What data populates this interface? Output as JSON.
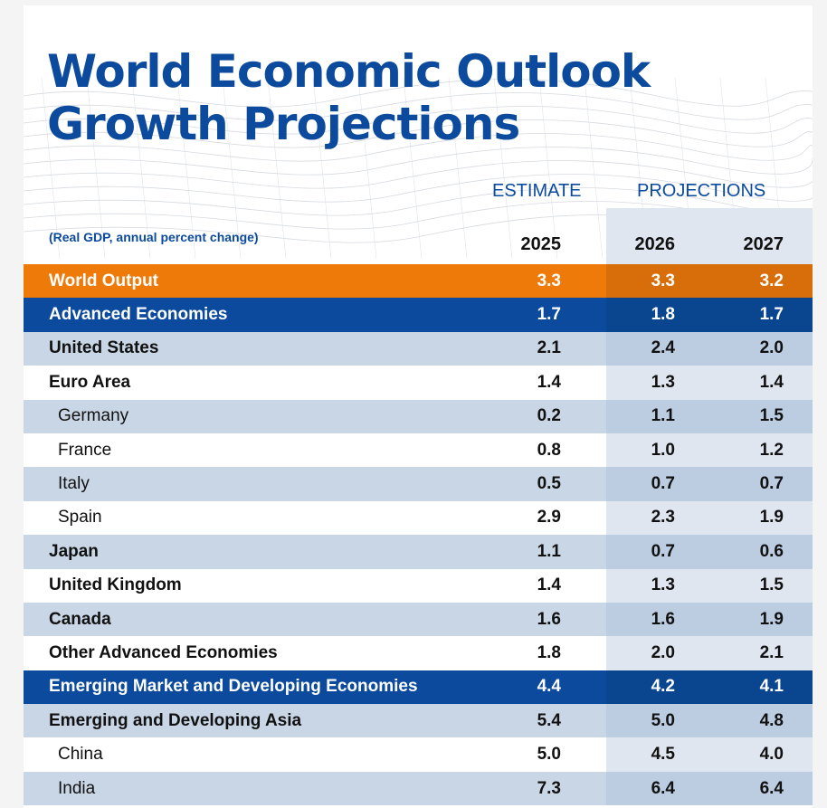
{
  "title_line1": "World Economic Outlook",
  "title_line2": "Growth Projections",
  "estimate_label": "ESTIMATE",
  "projections_label": "PROJECTIONS",
  "subtitle": "(Real GDP, annual percent change)",
  "years": [
    "2025",
    "2026",
    "2027"
  ],
  "rows": [
    {
      "label": "World Output",
      "values": [
        "3.3",
        "3.3",
        "3.2"
      ],
      "style": "orange",
      "sub": false
    },
    {
      "label": "Advanced Economies",
      "values": [
        "1.7",
        "1.8",
        "1.7"
      ],
      "style": "blue",
      "sub": false
    },
    {
      "label": "United States",
      "values": [
        "2.1",
        "2.4",
        "2.0"
      ],
      "style": "shaded",
      "sub": false
    },
    {
      "label": "Euro Area",
      "values": [
        "1.4",
        "1.3",
        "1.4"
      ],
      "style": "plain",
      "sub": false
    },
    {
      "label": "Germany",
      "values": [
        "0.2",
        "1.1",
        "1.5"
      ],
      "style": "shaded",
      "sub": true
    },
    {
      "label": "France",
      "values": [
        "0.8",
        "1.0",
        "1.2"
      ],
      "style": "plain",
      "sub": true
    },
    {
      "label": "Italy",
      "values": [
        "0.5",
        "0.7",
        "0.7"
      ],
      "style": "shaded",
      "sub": true
    },
    {
      "label": "Spain",
      "values": [
        "2.9",
        "2.3",
        "1.9"
      ],
      "style": "plain",
      "sub": true
    },
    {
      "label": "Japan",
      "values": [
        "1.1",
        "0.7",
        "0.6"
      ],
      "style": "shaded",
      "sub": false
    },
    {
      "label": "United Kingdom",
      "values": [
        "1.4",
        "1.3",
        "1.5"
      ],
      "style": "plain",
      "sub": false
    },
    {
      "label": "Canada",
      "values": [
        "1.6",
        "1.6",
        "1.9"
      ],
      "style": "shaded",
      "sub": false
    },
    {
      "label": "Other Advanced Economies",
      "values": [
        "1.8",
        "2.0",
        "2.1"
      ],
      "style": "plain",
      "sub": false
    },
    {
      "label": "Emerging Market and Developing Economies",
      "values": [
        "4.4",
        "4.2",
        "4.1"
      ],
      "style": "blue",
      "sub": false
    },
    {
      "label": "Emerging and Developing Asia",
      "values": [
        "5.4",
        "5.0",
        "4.8"
      ],
      "style": "shaded",
      "sub": false
    },
    {
      "label": "China",
      "values": [
        "5.0",
        "4.5",
        "4.0"
      ],
      "style": "plain",
      "sub": true
    },
    {
      "label": "India",
      "values": [
        "7.3",
        "6.4",
        "6.4"
      ],
      "style": "shaded",
      "sub": true
    }
  ],
  "colors": {
    "brand_blue": "#0b4a9c",
    "orange": "#ee7a0a",
    "shaded_row": "#c9d6e6",
    "projection_column": "#dfe6ef"
  }
}
